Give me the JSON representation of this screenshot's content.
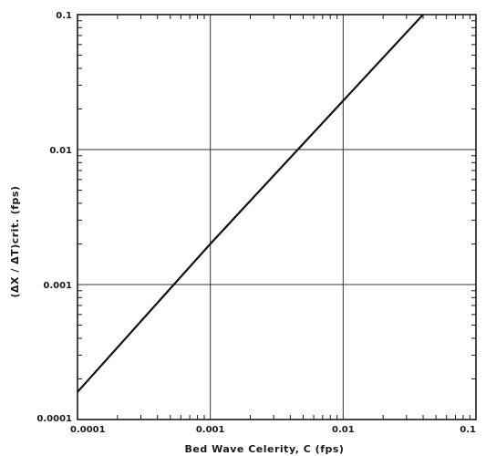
{
  "chart_data": {
    "type": "line",
    "xscale": "log",
    "yscale": "log",
    "xlim": [
      0.0001,
      0.1
    ],
    "ylim": [
      0.0001,
      0.1
    ],
    "xticks": [
      "0.0001",
      "0.001",
      "0.01",
      "0.1"
    ],
    "yticks": [
      "0.0001",
      "0.001",
      "0.01",
      "0.1"
    ],
    "xlabel": "Bed Wave Celerity, C (fps)",
    "ylabel": "(ΔX / ΔT)crit. (fps)",
    "grid": true,
    "series": [
      {
        "x": [
          0.0001,
          0.001,
          0.01,
          0.04
        ],
        "y": [
          0.00016,
          0.002,
          0.023,
          0.1
        ]
      }
    ]
  }
}
